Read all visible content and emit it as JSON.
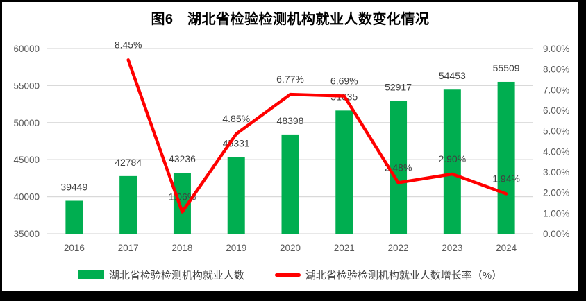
{
  "title": "图6　湖北省检验检测机构就业人数变化情况",
  "colors": {
    "bar": "#00AE50",
    "line": "#FF0000",
    "grid": "#D9D9D9",
    "axis_text": "#595959",
    "data_label": "#404040",
    "title_text": "#000000",
    "panel": "#FFFFFF",
    "frame": "#000000"
  },
  "legend": {
    "bar_label": "湖北省检验检测机构就业人数",
    "line_label": "湖北省检验检测机构就业人数增长率（%）"
  },
  "chart_data": {
    "type": "combo-bar-line",
    "title": "图6　湖北省检验检测机构就业人数变化情况",
    "categories": [
      "2016",
      "2017",
      "2018",
      "2019",
      "2020",
      "2021",
      "2022",
      "2023",
      "2024"
    ],
    "series": [
      {
        "name": "湖北省检验检测机构就业人数",
        "type": "bar",
        "axis": "left",
        "color": "#00AE50",
        "values": [
          39449,
          42784,
          43236,
          45331,
          48398,
          51635,
          52917,
          54453,
          55509
        ],
        "labels": [
          "39449",
          "42784",
          "43236",
          "45331",
          "48398",
          "51635",
          "52917",
          "54453",
          "55509"
        ]
      },
      {
        "name": "湖北省检验检测机构就业人数增长率（%）",
        "type": "line",
        "axis": "right",
        "color": "#FF0000",
        "values": [
          null,
          8.45,
          1.06,
          4.85,
          6.77,
          6.69,
          2.48,
          2.9,
          1.94
        ],
        "labels": [
          "",
          "8.45%",
          "1.06%",
          "4.85%",
          "6.77%",
          "6.69%",
          "2.48%",
          "2.90%",
          "1.94%"
        ]
      }
    ],
    "left_axis": {
      "min": 35000,
      "max": 60000,
      "step": 5000,
      "ticks": [
        "35000",
        "40000",
        "45000",
        "50000",
        "55000",
        "60000"
      ]
    },
    "right_axis": {
      "min": 0,
      "max": 9,
      "step": 1,
      "ticks": [
        "0.00%",
        "1.00%",
        "2.00%",
        "3.00%",
        "4.00%",
        "5.00%",
        "6.00%",
        "7.00%",
        "8.00%",
        "9.00%"
      ]
    },
    "grid": true,
    "legend_position": "bottom"
  }
}
